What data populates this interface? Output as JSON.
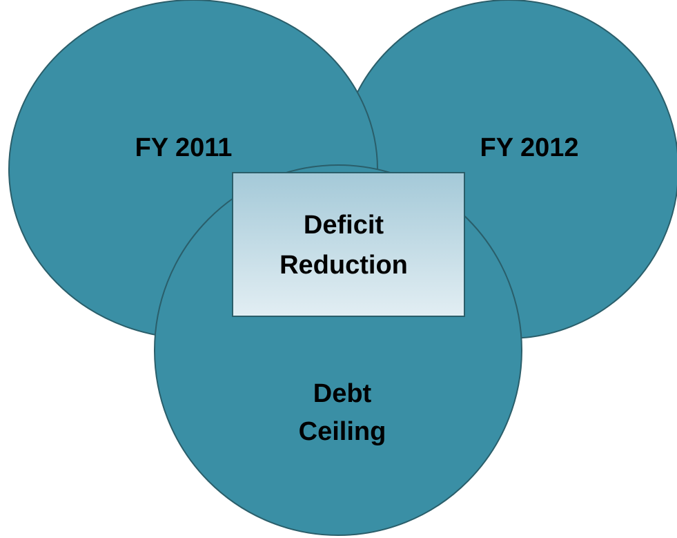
{
  "diagram": {
    "circles": [
      {
        "id": "fy2011",
        "label_lines": [
          "FY 2011"
        ]
      },
      {
        "id": "fy2012",
        "label_lines": [
          "FY 2012"
        ]
      },
      {
        "id": "debt-ceiling",
        "label_lines": [
          "Debt",
          "Ceiling"
        ]
      }
    ],
    "center_box": {
      "label_lines": [
        "Deficit",
        "Reduction"
      ]
    }
  },
  "colors": {
    "circle_fill": "#3a8fa5",
    "circle_stroke": "#2a5e6a",
    "box_gradient_top": "#a4c9d8",
    "box_gradient_bottom": "#e2eef3",
    "box_stroke": "#2a5e6a",
    "text": "#000000"
  }
}
